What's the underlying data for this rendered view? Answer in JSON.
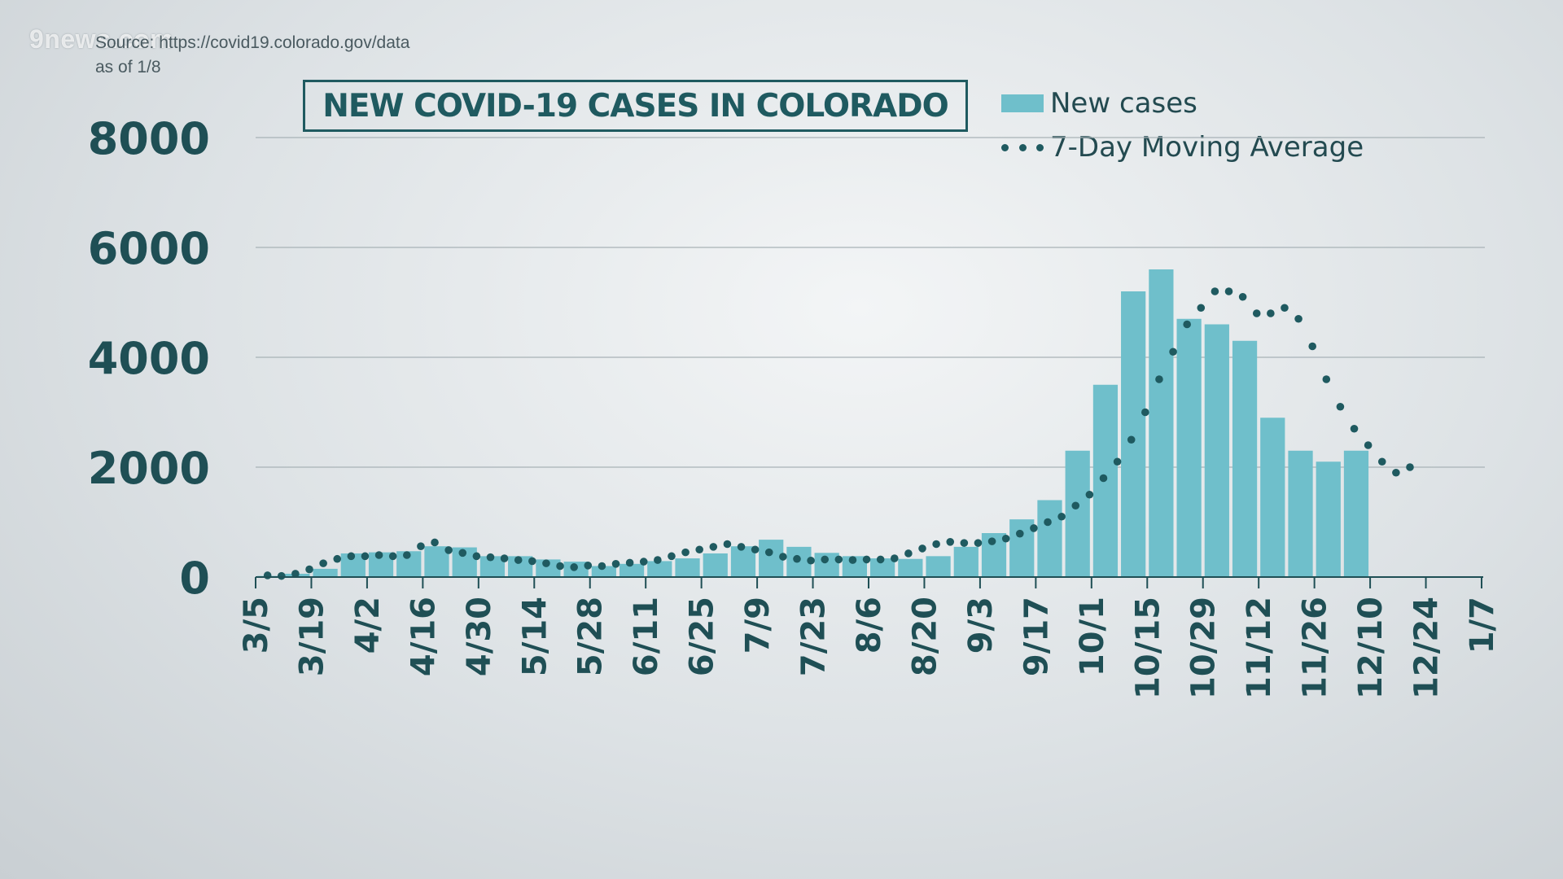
{
  "branding": {
    "logo": "9news.com"
  },
  "source": {
    "line1": "Source: https://covid19.colorado.gov/data",
    "line2": "as of 1/8"
  },
  "colors": {
    "bar": "#6fbfcb",
    "avg": "#1f5a60",
    "axis": "#1f4f55",
    "grid": "#a8b2b6"
  },
  "chart_data": {
    "type": "bar",
    "title": "NEW COVID-19 CASES IN COLORADO",
    "xlabel": "",
    "ylabel": "",
    "ylim": [
      0,
      8000
    ],
    "yticks": [
      0,
      2000,
      4000,
      6000,
      8000
    ],
    "grid": true,
    "legend_position": "top-right",
    "x_tick_labels": [
      "3/5",
      "3/19",
      "4/2",
      "4/16",
      "4/30",
      "5/14",
      "5/28",
      "6/11",
      "6/25",
      "7/9",
      "7/23",
      "8/6",
      "8/20",
      "9/3",
      "9/17",
      "10/1",
      "10/15",
      "10/29",
      "11/12",
      "11/26",
      "12/10",
      "12/24",
      "1/7"
    ],
    "series": [
      {
        "name": "New cases",
        "type": "bar",
        "x_start": "3/5",
        "interval_days": 7,
        "values": [
          20,
          60,
          150,
          430,
          450,
          470,
          560,
          540,
          380,
          380,
          320,
          280,
          200,
          240,
          290,
          340,
          430,
          560,
          680,
          550,
          440,
          380,
          340,
          330,
          380,
          550,
          800,
          1050,
          1400,
          2300,
          3500,
          5200,
          5600,
          4700,
          4600,
          4300,
          2900,
          2300,
          2100,
          2300
        ]
      },
      {
        "name": "7-Day Moving Average",
        "type": "dotted-line",
        "x_start": "3/8",
        "interval_days": 3.5,
        "values": [
          30,
          20,
          60,
          140,
          250,
          330,
          380,
          380,
          400,
          380,
          400,
          560,
          630,
          490,
          440,
          380,
          360,
          340,
          310,
          290,
          250,
          200,
          180,
          210,
          200,
          240,
          260,
          280,
          310,
          380,
          450,
          500,
          550,
          600,
          550,
          500,
          450,
          370,
          330,
          300,
          320,
          320,
          310,
          320,
          320,
          340,
          430,
          520,
          600,
          640,
          620,
          620,
          650,
          700,
          790,
          890,
          1000,
          1100,
          1300,
          1500,
          1800,
          2100,
          2500,
          3000,
          3600,
          4100,
          4600,
          4900,
          5200,
          5200,
          5100,
          4800,
          4800,
          4900,
          4700,
          4200,
          3600,
          3100,
          2700,
          2400,
          2100,
          1900,
          2000
        ]
      }
    ]
  }
}
